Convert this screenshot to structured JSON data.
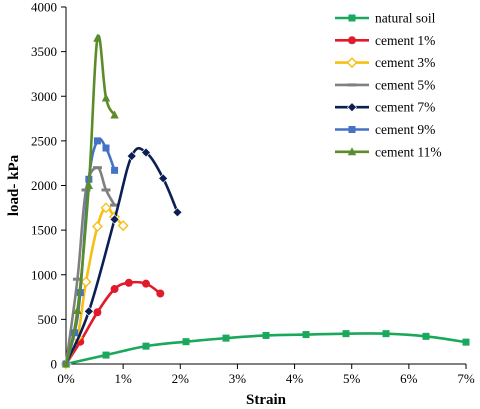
{
  "chart_data": {
    "type": "line",
    "title": "",
    "xlabel": "Strain",
    "ylabel": "load- kPa",
    "xlim": [
      0,
      7
    ],
    "ylim": [
      0,
      4000
    ],
    "x_ticks": [
      "0%",
      "1%",
      "2%",
      "3%",
      "4%",
      "5%",
      "6%",
      "7%"
    ],
    "y_ticks": [
      "0",
      "500",
      "1000",
      "1500",
      "2000",
      "2500",
      "3000",
      "3500",
      "4000"
    ],
    "grid": false,
    "legend_position": "top-right",
    "series": [
      {
        "name": "natural soil",
        "color": "#1aa85c",
        "marker": "square",
        "points": [
          [
            0,
            0
          ],
          [
            0.7,
            100
          ],
          [
            1.4,
            200
          ],
          [
            2.1,
            250
          ],
          [
            2.8,
            290
          ],
          [
            3.5,
            320
          ],
          [
            4.2,
            330
          ],
          [
            4.9,
            340
          ],
          [
            5.6,
            340
          ],
          [
            6.3,
            310
          ],
          [
            7.0,
            245
          ]
        ]
      },
      {
        "name": "cement 1%",
        "color": "#e11a2c",
        "marker": "circle",
        "points": [
          [
            0,
            0
          ],
          [
            0.25,
            250
          ],
          [
            0.55,
            580
          ],
          [
            0.85,
            840
          ],
          [
            1.1,
            910
          ],
          [
            1.4,
            900
          ],
          [
            1.65,
            790
          ]
        ]
      },
      {
        "name": "cement 3%",
        "color": "#f7bf13",
        "marker": "diamond-open",
        "points": [
          [
            0,
            0
          ],
          [
            0.2,
            300
          ],
          [
            0.35,
            920
          ],
          [
            0.55,
            1540
          ],
          [
            0.7,
            1750
          ],
          [
            0.85,
            1650
          ],
          [
            1.0,
            1550
          ]
        ]
      },
      {
        "name": "cement 5%",
        "color": "#808080",
        "marker": "dash",
        "points": [
          [
            0,
            0
          ],
          [
            0.2,
            950
          ],
          [
            0.35,
            1950
          ],
          [
            0.55,
            2200
          ],
          [
            0.7,
            1950
          ],
          [
            0.85,
            1780
          ]
        ]
      },
      {
        "name": "cement 7%",
        "color": "#0c1f52",
        "marker": "diamond",
        "points": [
          [
            0,
            0
          ],
          [
            0.4,
            590
          ],
          [
            0.85,
            1620
          ],
          [
            1.15,
            2330
          ],
          [
            1.4,
            2370
          ],
          [
            1.7,
            2080
          ],
          [
            1.95,
            1700
          ]
        ]
      },
      {
        "name": "cement 9%",
        "color": "#4472c4",
        "marker": "square",
        "points": [
          [
            0,
            0
          ],
          [
            0.15,
            350
          ],
          [
            0.25,
            800
          ],
          [
            0.4,
            2070
          ],
          [
            0.55,
            2500
          ],
          [
            0.7,
            2420
          ],
          [
            0.85,
            2170
          ]
        ]
      },
      {
        "name": "cement 11%",
        "color": "#5b8c2a",
        "marker": "triangle",
        "points": [
          [
            0,
            0
          ],
          [
            0.2,
            600
          ],
          [
            0.4,
            2000
          ],
          [
            0.55,
            3650
          ],
          [
            0.7,
            2980
          ],
          [
            0.85,
            2790
          ]
        ]
      }
    ]
  }
}
